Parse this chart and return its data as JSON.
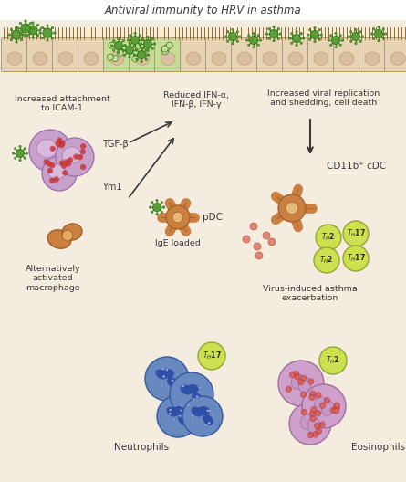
{
  "title": "Antiviral immunity to HRV in asthma",
  "bg_color": "#f5ece0",
  "virus_color": "#5a9e3a",
  "virus_outline": "#3a7a1a",
  "cell_infected_color": "#c8dc9a",
  "cell_normal_color": "#e8d4b4",
  "epi_cell_border": "#b8985a",
  "epi_cilia_color": "#8b7040",
  "purple_cell_color": "#c8a0cc",
  "purple_cell_outline": "#9870a8",
  "red_dot_color": "#d84040",
  "orange_color": "#cc8040",
  "orange_outline": "#a06028",
  "th_color": "#cce050",
  "th_outline": "#90a830",
  "blue_cell_color": "#6888c0",
  "blue_cell_outline": "#3858a0",
  "blue_nucleus_color": "#3050a8",
  "pink_cell_color": "#d0a0cc",
  "pink_cell_outline": "#a07098",
  "salmon_color": "#e08878",
  "text_color": "#3a3a3a",
  "labels": {
    "title": "Antiviral immunity to HRV in asthma",
    "increased_attachment": "Increased attachment\nto ICAM-1",
    "tgf": "TGF-β",
    "ym1": "Ym1",
    "reduced_ifn": "Reduced IFN-α,\nIFN-β, IFN-γ",
    "increased_viral": "Increased viral replication\nand shedding, cell death",
    "cd11b": "CD11b⁺ cDC",
    "alternatively": "Alternatively\nactivated\nmacrophage",
    "ige": "IgE loaded",
    "pdc": "pDC",
    "virus_induced": "Virus-induced asthma\nexacerbation",
    "neutrophils": "Neutrophils",
    "eosinophils": "Eosinophils"
  }
}
